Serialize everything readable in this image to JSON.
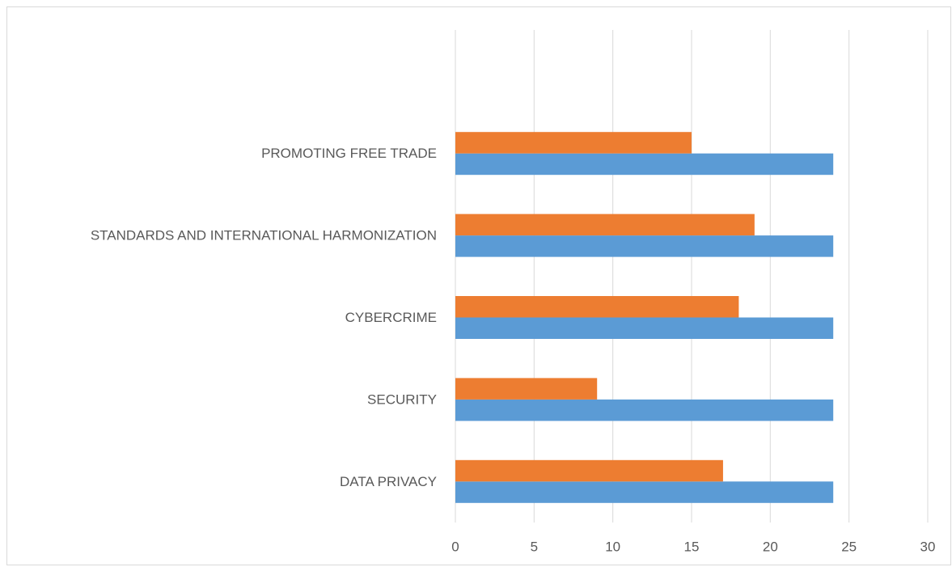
{
  "chart_data": {
    "type": "hbar",
    "categories": [
      "DATA PRIVACY",
      "SECURITY",
      "CYBERCRIME",
      "STANDARDS AND INTERNATIONAL HARMONIZATION",
      "PROMOTING FREE TRADE"
    ],
    "series": [
      {
        "color": "#5b9bd5",
        "values": [
          24,
          24,
          24,
          24,
          24
        ]
      },
      {
        "color": "#ed7d31",
        "values": [
          17,
          9,
          18,
          19,
          15
        ]
      }
    ],
    "xlim": [
      0,
      30
    ],
    "xticks": [
      0,
      5,
      10,
      15,
      20,
      25,
      30
    ],
    "grid": true
  }
}
